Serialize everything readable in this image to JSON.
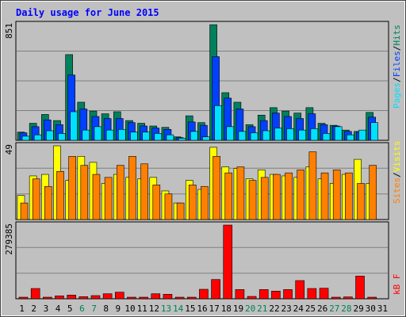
{
  "colors": {
    "background": "#c0c0c0",
    "title": "#0000ff",
    "hits": "#00805c",
    "files": "#0040ff",
    "pages": "#00e0ff",
    "visits": "#ffff00",
    "sites": "#ff8000",
    "kbytes": "#ff0000",
    "weekend_label": "#00805c",
    "weekday_label": "#000000"
  },
  "chart_data": [
    {
      "type": "bar",
      "title": "Daily usage for June 2015",
      "max_label": "851",
      "ylim": [
        0,
        851
      ],
      "legend": [
        "Pages",
        "Files",
        "Hits"
      ],
      "categories": [
        "1",
        "2",
        "3",
        "4",
        "5",
        "6",
        "7",
        "8",
        "9",
        "10",
        "11",
        "12",
        "13",
        "14",
        "15",
        "16",
        "17",
        "18",
        "19",
        "20",
        "21",
        "22",
        "23",
        "24",
        "25",
        "26",
        "27",
        "28",
        "29",
        "30",
        "31"
      ],
      "series": [
        {
          "name": "Hits",
          "values": [
            60,
            125,
            190,
            145,
            630,
            280,
            215,
            195,
            210,
            145,
            125,
            105,
            95,
            25,
            180,
            130,
            850,
            350,
            280,
            115,
            185,
            240,
            215,
            200,
            240,
            125,
            110,
            75,
            65,
            205,
            0
          ]
        },
        {
          "name": "Files",
          "values": [
            55,
            100,
            150,
            115,
            480,
            230,
            175,
            160,
            160,
            130,
            105,
            90,
            80,
            20,
            135,
            110,
            615,
            310,
            230,
            100,
            145,
            200,
            175,
            160,
            195,
            115,
            105,
            65,
            60,
            170,
            0
          ]
        },
        {
          "name": "Pages",
          "values": [
            30,
            40,
            70,
            50,
            210,
            75,
            100,
            75,
            80,
            60,
            60,
            50,
            40,
            15,
            65,
            25,
            255,
            100,
            65,
            55,
            70,
            90,
            85,
            75,
            85,
            50,
            100,
            40,
            75,
            130,
            0
          ]
        }
      ]
    },
    {
      "type": "bar",
      "max_label": "49",
      "ylim": [
        0,
        49
      ],
      "legend": [
        "Sites",
        "Visits"
      ],
      "categories": [
        "1",
        "2",
        "3",
        "4",
        "5",
        "6",
        "7",
        "8",
        "9",
        "10",
        "11",
        "12",
        "13",
        "14",
        "15",
        "16",
        "17",
        "18",
        "19",
        "20",
        "21",
        "22",
        "23",
        "24",
        "25",
        "26",
        "27",
        "28",
        "29",
        "30",
        "31"
      ],
      "series": [
        {
          "name": "Visits",
          "values": [
            16,
            29,
            30,
            49,
            26,
            42,
            38,
            24,
            30,
            28,
            27,
            28,
            19,
            11,
            26,
            20,
            48,
            35,
            34,
            27,
            33,
            30,
            29,
            28,
            35,
            27,
            24,
            30,
            40,
            24,
            0
          ]
        },
        {
          "name": "Sites",
          "values": [
            11,
            27,
            22,
            32,
            42,
            36,
            30,
            28,
            36,
            42,
            37,
            23,
            17,
            11,
            23,
            22,
            42,
            31,
            35,
            26,
            28,
            30,
            31,
            33,
            45,
            31,
            33,
            31,
            24,
            36,
            0
          ]
        }
      ]
    },
    {
      "type": "bar",
      "max_label": "279385",
      "ylim": [
        0,
        279385
      ],
      "legend": [
        "kB F"
      ],
      "categories": [
        "1",
        "2",
        "3",
        "4",
        "5",
        "6",
        "7",
        "8",
        "9",
        "10",
        "11",
        "12",
        "13",
        "14",
        "15",
        "16",
        "17",
        "18",
        "19",
        "20",
        "21",
        "22",
        "23",
        "24",
        "25",
        "26",
        "27",
        "28",
        "29",
        "30",
        "31"
      ],
      "series": [
        {
          "name": "kB F",
          "values": [
            5000,
            39000,
            5000,
            11000,
            14000,
            8000,
            12000,
            19000,
            25000,
            5000,
            5000,
            19000,
            17000,
            5000,
            5000,
            36000,
            73000,
            279385,
            35000,
            9000,
            35000,
            29000,
            35000,
            69000,
            39000,
            40000,
            5000,
            7000,
            86000,
            5000,
            0
          ]
        }
      ]
    }
  ],
  "weekend_days": [
    6,
    7,
    13,
    14,
    20,
    21,
    27,
    28
  ]
}
